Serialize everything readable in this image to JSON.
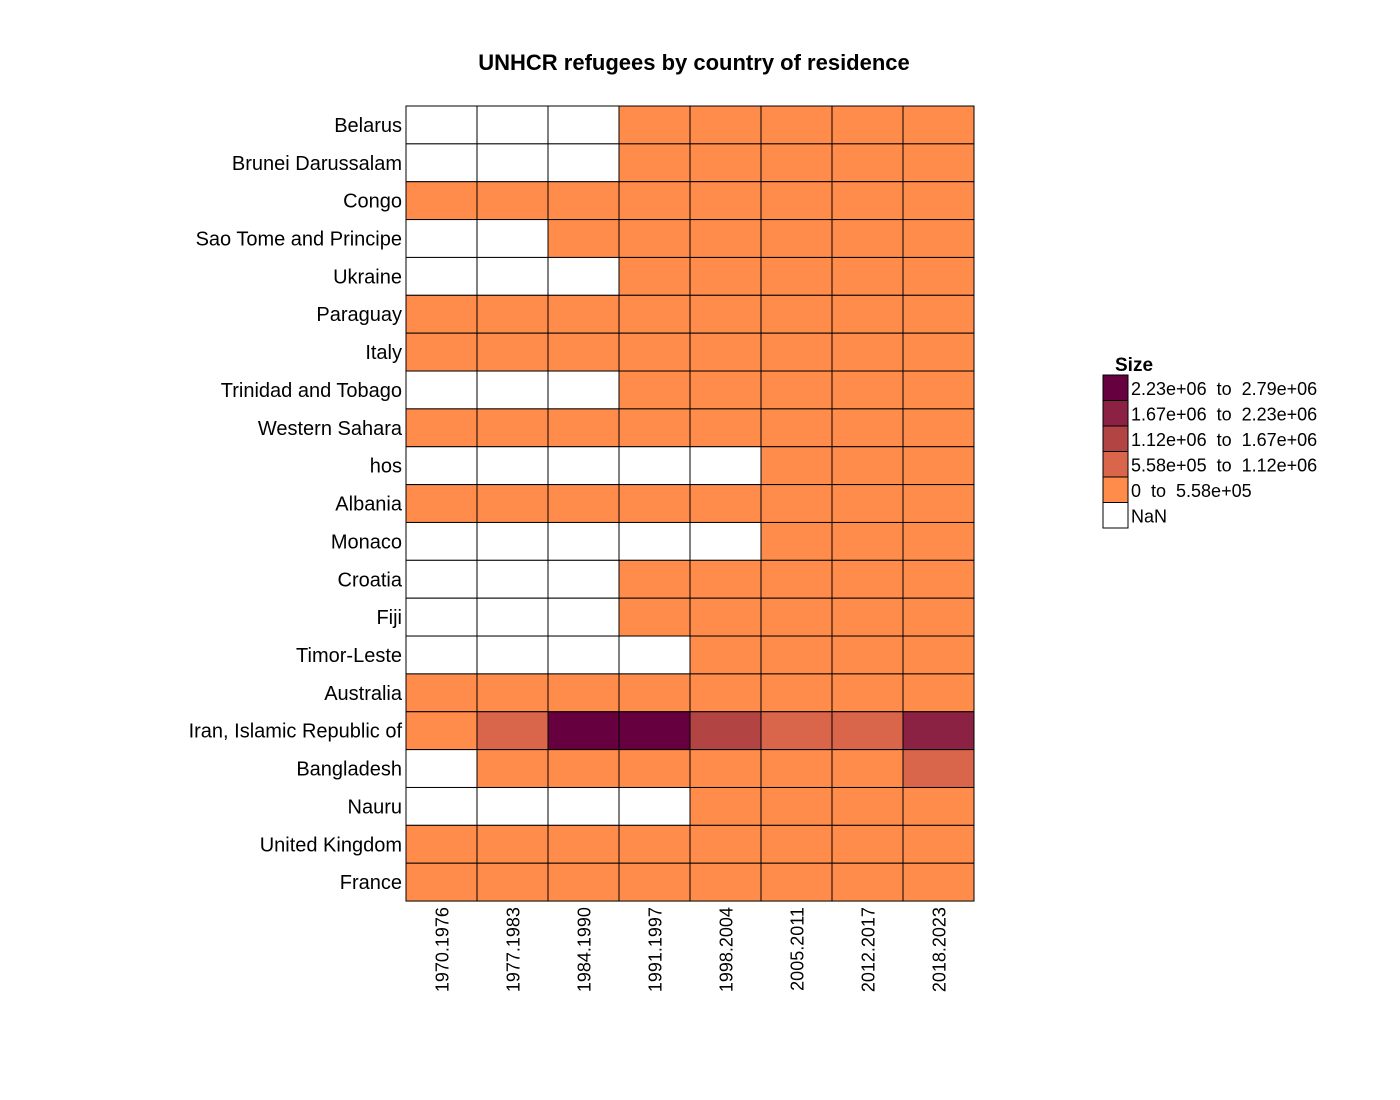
{
  "chart_data": {
    "type": "heatmap",
    "title": "UNHCR refugees by country of residence",
    "xlabel": "",
    "ylabel": "",
    "columns": [
      "1970.1976",
      "1977.1983",
      "1984.1990",
      "1991.1997",
      "1998.2004",
      "2005.2011",
      "2012.2017",
      "2018.2023"
    ],
    "rows": [
      "Belarus",
      "Brunei Darussalam",
      "Congo",
      "Sao Tome and Principe",
      "Ukraine",
      "Paraguay",
      "Italy",
      "Trinidad and Tobago",
      "Western Sahara",
      "hos",
      "Albania",
      "Monaco",
      "Croatia",
      "Fiji",
      "Timor-Leste",
      "Australia",
      "Iran, Islamic Republic of",
      "Bangladesh",
      "Nauru",
      "United Kingdom",
      "France"
    ],
    "bins": [
      {
        "label": "2.23e+06  to  2.79e+06",
        "color": "#67003f"
      },
      {
        "label": "1.67e+06  to  2.23e+06",
        "color": "#8b2243"
      },
      {
        "label": "1.12e+06  to  1.67e+06",
        "color": "#b34444"
      },
      {
        "label": "5.58e+05  to  1.12e+06",
        "color": "#d9664a"
      },
      {
        "label": "0  to  5.58e+05",
        "color": "#ff8c4b"
      },
      {
        "label": "NaN",
        "color": "#ffffff"
      }
    ],
    "legend_title": "Size",
    "legend_position": "right",
    "bin_matrix": [
      [
        5,
        5,
        5,
        4,
        4,
        4,
        4,
        4
      ],
      [
        5,
        5,
        5,
        4,
        4,
        4,
        4,
        4
      ],
      [
        4,
        4,
        4,
        4,
        4,
        4,
        4,
        4
      ],
      [
        5,
        5,
        4,
        4,
        4,
        4,
        4,
        4
      ],
      [
        5,
        5,
        5,
        4,
        4,
        4,
        4,
        4
      ],
      [
        4,
        4,
        4,
        4,
        4,
        4,
        4,
        4
      ],
      [
        4,
        4,
        4,
        4,
        4,
        4,
        4,
        4
      ],
      [
        5,
        5,
        5,
        4,
        4,
        4,
        4,
        4
      ],
      [
        4,
        4,
        4,
        4,
        4,
        4,
        4,
        4
      ],
      [
        5,
        5,
        5,
        5,
        5,
        4,
        4,
        4
      ],
      [
        4,
        4,
        4,
        4,
        4,
        4,
        4,
        4
      ],
      [
        5,
        5,
        5,
        5,
        5,
        4,
        4,
        4
      ],
      [
        5,
        5,
        5,
        4,
        4,
        4,
        4,
        4
      ],
      [
        5,
        5,
        5,
        4,
        4,
        4,
        4,
        4
      ],
      [
        5,
        5,
        5,
        5,
        4,
        4,
        4,
        4
      ],
      [
        4,
        4,
        4,
        4,
        4,
        4,
        4,
        4
      ],
      [
        4,
        3,
        0,
        0,
        2,
        3,
        3,
        1
      ],
      [
        5,
        4,
        4,
        4,
        4,
        4,
        4,
        3
      ],
      [
        5,
        5,
        5,
        5,
        4,
        4,
        4,
        4
      ],
      [
        4,
        4,
        4,
        4,
        4,
        4,
        4,
        4
      ],
      [
        4,
        4,
        4,
        4,
        4,
        4,
        4,
        4
      ]
    ],
    "grid": true
  }
}
